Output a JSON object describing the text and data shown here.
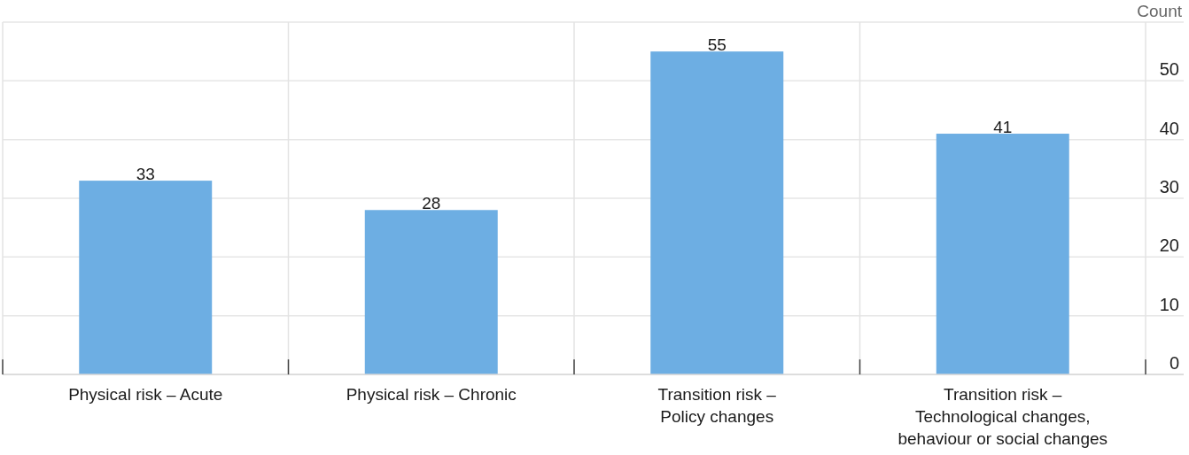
{
  "chart_data": {
    "type": "bar",
    "ylabel": "Count",
    "categories": [
      "Physical risk – Acute",
      "Physical risk – Chronic",
      "Transition risk –\nPolicy changes",
      "Transition risk –\nTechnological changes,\nbehaviour or social changes"
    ],
    "values": [
      33,
      28,
      55,
      41
    ],
    "color": "#6daee3",
    "ylim": [
      0,
      60
    ],
    "yticks": [
      0,
      10,
      20,
      30,
      40,
      50
    ],
    "grid": true,
    "data_labels": true
  }
}
